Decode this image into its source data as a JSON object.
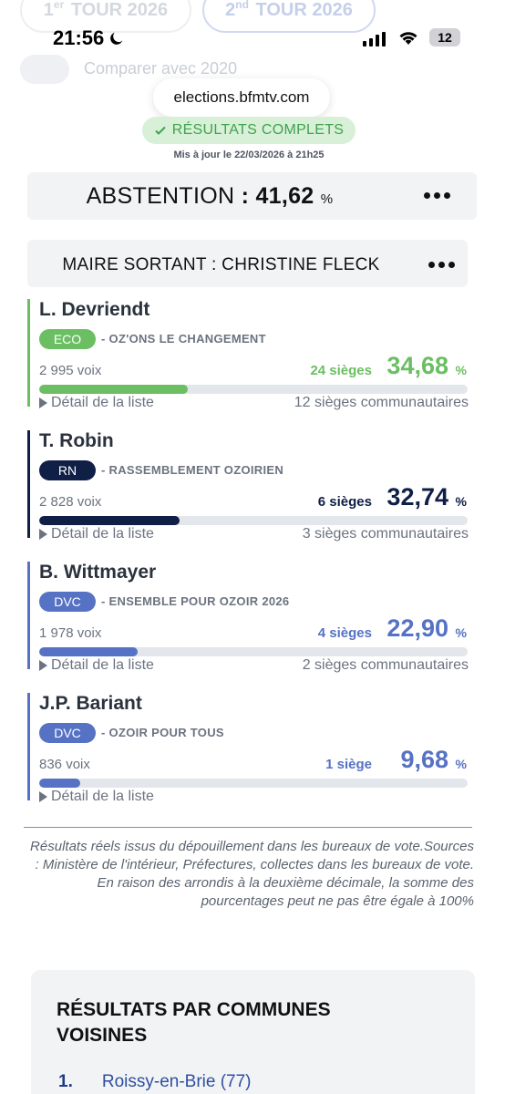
{
  "tabs": {
    "tour1_sup": "er",
    "tour1_prefix": "1",
    "tour1_label": "TOUR 2026",
    "tour2_prefix": "2",
    "tour2_sup": "nd",
    "tour2_label": "TOUR 2026"
  },
  "compare_label": "Comparer avec 2020",
  "status_bar": {
    "time": "21:56",
    "battery": "12"
  },
  "url": "elections.bfmtv.com",
  "results_status": "RÉSULTATS COMPLETS",
  "updated_at": "Mis à jour le 22/03/2026 à 21h25",
  "abstention": {
    "label": "ABSTENTION",
    "colon": " : ",
    "value": "41,62",
    "unit": "%"
  },
  "maire": "MAIRE SORTANT : CHRISTINE FLECK",
  "candidates": [
    {
      "name": "L. Devriendt",
      "party": "ECO",
      "list": "- OZ'ONS LE CHANGEMENT",
      "votes": "2 995 voix",
      "seats": "24 sièges",
      "pct": "34,68",
      "pct_num": 34.68,
      "unit": "%",
      "detail": "Détail de la liste",
      "community": "12 sièges communautaires",
      "color": "#6bbf62"
    },
    {
      "name": "T. Robin",
      "party": "RN",
      "list": "- RASSEMBLEMENT OZOIRIEN",
      "votes": "2 828 voix",
      "seats": "6 sièges",
      "pct": "32,74",
      "pct_num": 32.74,
      "unit": "%",
      "detail": "Détail de la liste",
      "community": "3 sièges communautaires",
      "color": "#0f1f45"
    },
    {
      "name": "B. Wittmayer",
      "party": "DVC",
      "list": "- ENSEMBLE POUR OZOIR 2026",
      "votes": "1 978 voix",
      "seats": "4 sièges",
      "pct": "22,90",
      "pct_num": 22.9,
      "unit": "%",
      "detail": "Détail de la liste",
      "community": "2 sièges communautaires",
      "color": "#5672c4"
    },
    {
      "name": "J.P. Bariant",
      "party": "DVC",
      "list": "- OZOIR POUR TOUS",
      "votes": "836 voix",
      "seats": "1 siège",
      "pct": "9,68",
      "pct_num": 9.68,
      "unit": "%",
      "detail": "Détail de la liste",
      "community": "",
      "color": "#5672c4"
    }
  ],
  "disclaimer": "Résultats réels issus du dépouillement dans les bureaux de vote.Sources : Ministère de l'intérieur, Préfectures, collectes dans les bureaux de vote. En raison des arrondis à la deuxième décimale, la somme des pourcentages peut ne pas être égale à 100%",
  "neighbors": {
    "title": "RÉSULTATS PAR COMMUNES VOISINES",
    "items": [
      {
        "num": "1.",
        "name": "Roissy-en-Brie (77)"
      }
    ]
  },
  "icons": [
    "moon-icon",
    "signal-icon",
    "wifi-icon",
    "battery-icon",
    "check-icon",
    "more-icon",
    "triangle-right-icon"
  ]
}
